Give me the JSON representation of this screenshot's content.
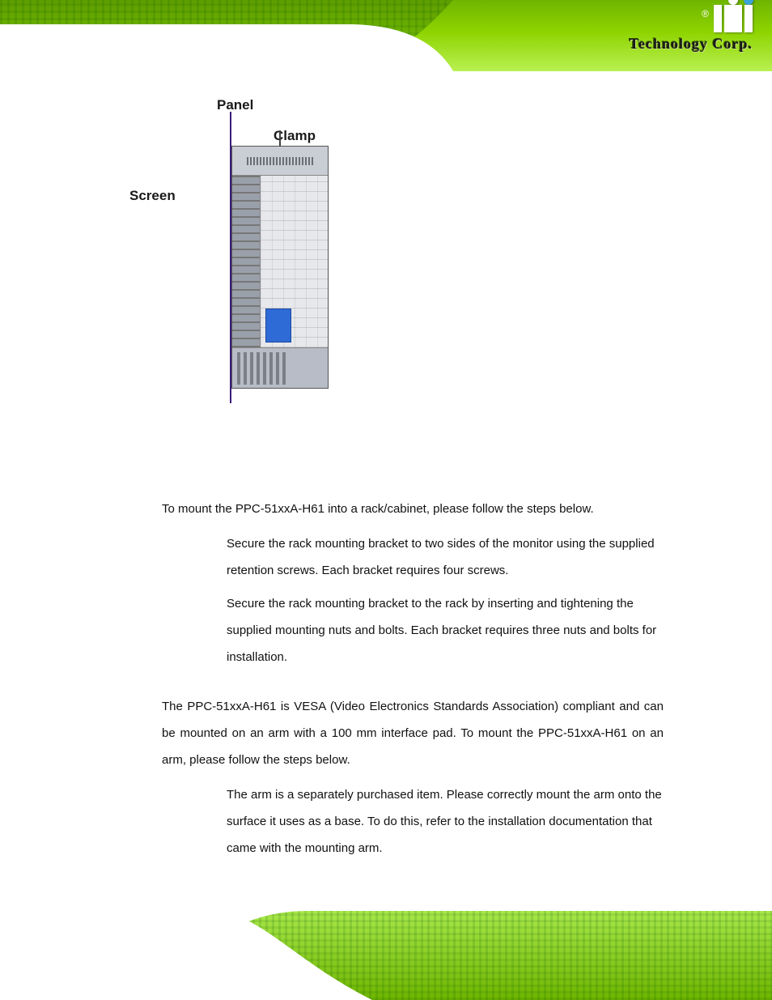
{
  "header": {
    "brand_mark": "iEi",
    "registered": "®",
    "tagline": "Technology Corp."
  },
  "figure": {
    "labels": {
      "panel": "Panel",
      "clamp": "Clamp",
      "screen": "Screen"
    },
    "colors": {
      "panel_line": "#3a1d7a",
      "device_body": "#bfc5cf",
      "device_border": "#555555",
      "connector_blue": "#2f6bd6"
    }
  },
  "body": {
    "rack_intro": "To mount the PPC-51xxA-H61 into a rack/cabinet, please follow the steps below.",
    "rack_step1": "Secure the rack mounting bracket to two sides of the monitor using the supplied retention screws. Each bracket requires four screws.",
    "rack_step2": "Secure the rack mounting bracket to the rack by inserting and tightening the supplied mounting nuts and bolts. Each bracket requires three nuts and bolts for installation.",
    "arm_intro": "The PPC-51xxA-H61 is VESA (Video Electronics Standards Association) compliant and can be mounted on an arm with a 100 mm interface pad. To mount the PPC-51xxA-H61 on an arm, please follow the steps below.",
    "arm_step1": "The arm is a separately purchased item. Please correctly mount the arm onto the surface it uses as a base. To do this, refer to the installation documentation that came with the mounting arm."
  },
  "palette": {
    "pcb_green_dark": "#5e9e00",
    "pcb_green_mid": "#8ed400",
    "pcb_green_light": "#b9f052",
    "text": "#111111",
    "white": "#ffffff"
  },
  "typography": {
    "body_fontsize_pt": 11,
    "body_line_height": 2.2,
    "label_fontsize_pt": 13,
    "tagline_fontsize_pt": 14,
    "font_family": "Arial"
  }
}
